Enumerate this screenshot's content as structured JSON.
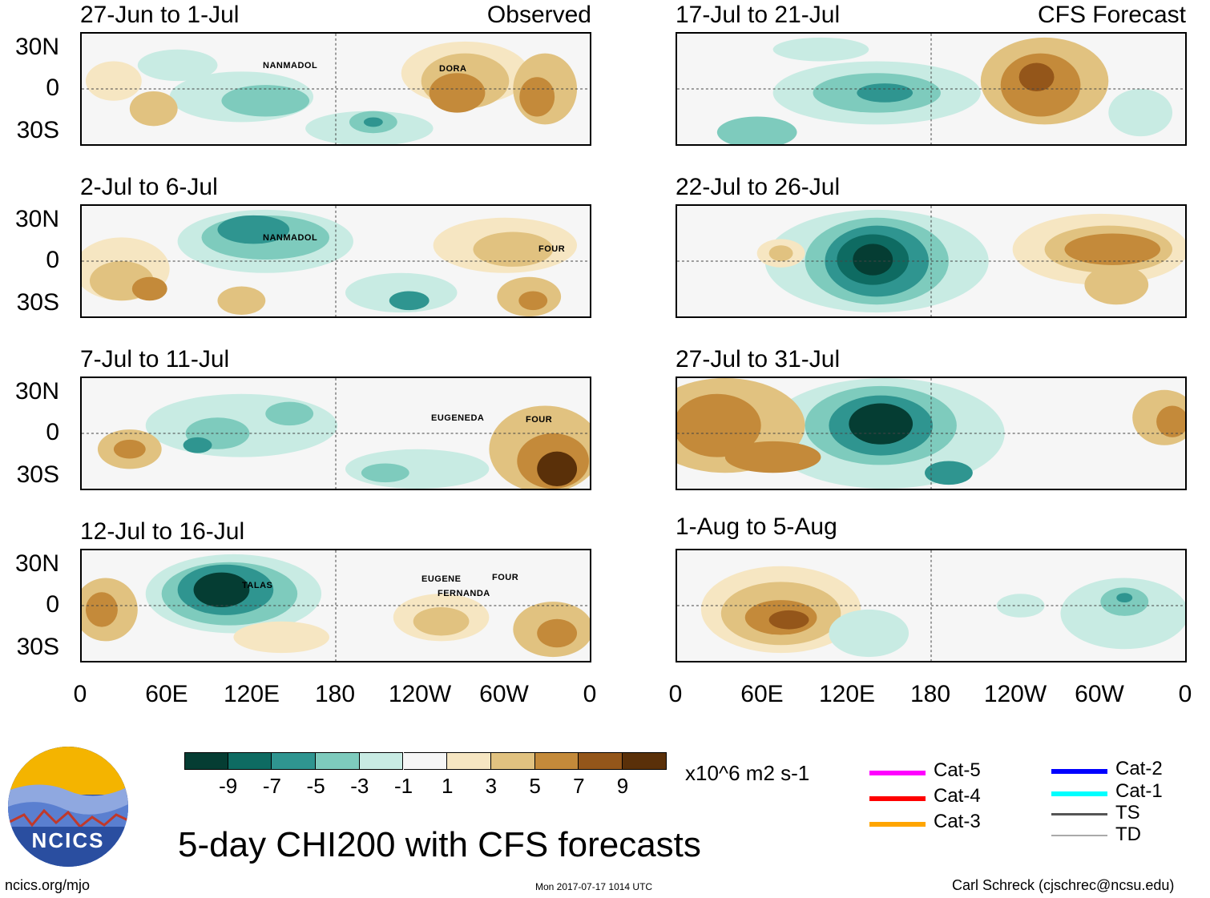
{
  "observed_label": "Observed",
  "forecast_label": "CFS Forecast",
  "lat_labels": [
    "30N",
    "0",
    "30S"
  ],
  "lon_labels": [
    "0",
    "60E",
    "120E",
    "180",
    "120W",
    "60W",
    "0"
  ],
  "panels_left": [
    {
      "title": "27-Jun to 1-Jul",
      "storms": [
        "NANMADOL",
        "DORA"
      ]
    },
    {
      "title": "2-Jul to 6-Jul",
      "storms": [
        "NANMADOL",
        "FOUR"
      ]
    },
    {
      "title": "7-Jul to 11-Jul",
      "storms": [
        "EUGENEDA",
        "FOUR"
      ]
    },
    {
      "title": "12-Jul to 16-Jul",
      "storms": [
        "TALAS",
        "EUGENE",
        "FOUR",
        "FERNANDA"
      ]
    }
  ],
  "panels_right": [
    {
      "title": "17-Jul to 21-Jul"
    },
    {
      "title": "22-Jul to 26-Jul"
    },
    {
      "title": "27-Jul to 31-Jul"
    },
    {
      "title": "1-Aug to 5-Aug"
    }
  ],
  "colorbar": {
    "colors": [
      "#053d33",
      "#0e6b62",
      "#2f9590",
      "#7ecbbd",
      "#c8ebe3",
      "#f6f6f6",
      "#f6e6c2",
      "#e1c280",
      "#c48a3a",
      "#94561a",
      "#5a3009"
    ],
    "ticks": [
      "-9",
      "-7",
      "-5",
      "-3",
      "-1",
      "1",
      "3",
      "5",
      "7",
      "9"
    ],
    "units": "x10^6 m2 s-1"
  },
  "legend": [
    {
      "label": "Cat-5",
      "color": "#ff00ff"
    },
    {
      "label": "Cat-4",
      "color": "#ff0000"
    },
    {
      "label": "Cat-3",
      "color": "#ffa500"
    },
    {
      "label": "Cat-2",
      "color": "#0000ff"
    },
    {
      "label": "Cat-1",
      "color": "#00ffff"
    },
    {
      "label": "TS",
      "color": "#555555"
    },
    {
      "label": "TD",
      "color": "#aaaaaa"
    }
  ],
  "main_title": "5-day CHI200 with CFS forecasts",
  "logo_text": "NCICS",
  "footer": {
    "url": "ncics.org/mjo",
    "timestamp": "Mon 2017-07-17 1014 UTC",
    "credit": "Carl Schreck (cjschrec@ncsu.edu)"
  }
}
